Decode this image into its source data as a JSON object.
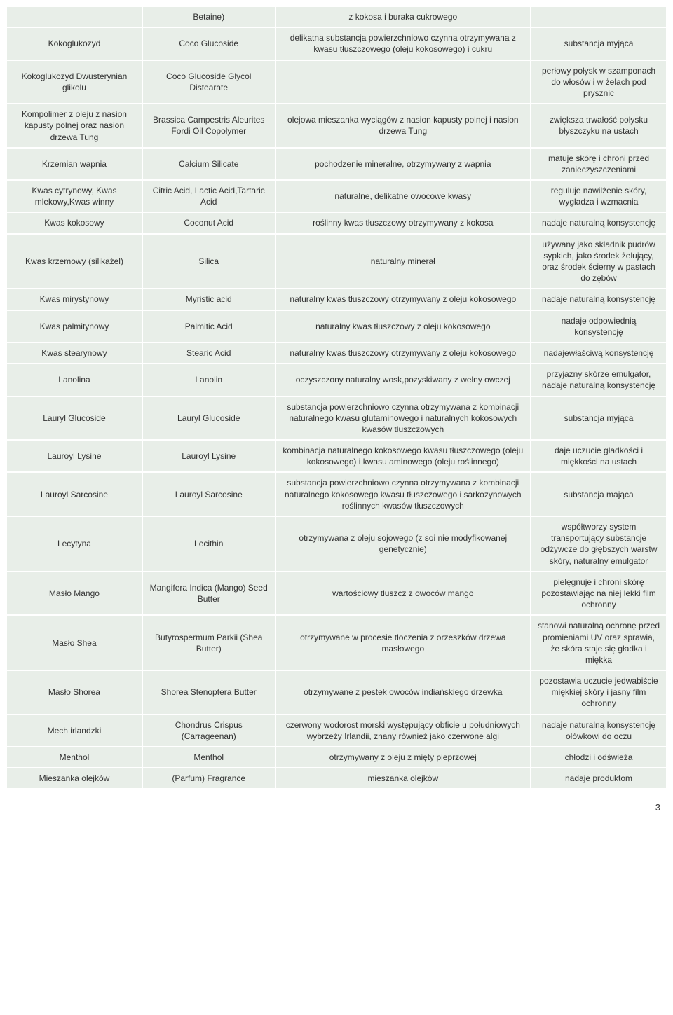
{
  "table": {
    "colors": {
      "cell_bg": "#e8eee8",
      "text": "#333333",
      "page_bg": "#ffffff"
    },
    "fontsize": 12,
    "rows": [
      {
        "c1": "",
        "c2": "Betaine)",
        "c3": "z kokosa i buraka cukrowego",
        "c4": ""
      },
      {
        "c1": "Kokoglukozyd",
        "c2": "Coco Glucoside",
        "c3": "delikatna substancja powierzchniowo czynna otrzymywana z kwasu tłuszczowego (oleju kokosowego) i cukru",
        "c4": "substancja myjąca"
      },
      {
        "c1": "Kokoglukozyd Dwusterynian glikolu",
        "c2": "Coco Glucoside Glycol Distearate",
        "c3": "",
        "c4": "perłowy połysk w szamponach do włosów i w żelach pod prysznic"
      },
      {
        "c1": "Kompolimer z oleju z nasion kapusty polnej oraz nasion drzewa Tung",
        "c2": "Brassica Campestris Aleurites Fordi Oil Copolymer",
        "c3": "olejowa mieszanka wyciągów z nasion kapusty polnej i nasion drzewa Tung",
        "c4": "zwiększa trwałość połysku błyszczyku na ustach"
      },
      {
        "c1": "Krzemian wapnia",
        "c2": "Calcium Silicate",
        "c3": "pochodzenie mineralne, otrzymywany z wapnia",
        "c4": "matuje skórę i chroni przed zanieczyszczeniami"
      },
      {
        "c1": "Kwas cytrynowy, Kwas mlekowy,Kwas winny",
        "c2": "Citric Acid, Lactic Acid,Tartaric Acid",
        "c3": "naturalne, delikatne owocowe kwasy",
        "c4": "reguluje nawilżenie skóry, wygładza i wzmacnia"
      },
      {
        "c1": "Kwas kokosowy",
        "c2": "Coconut Acid",
        "c3": "roślinny kwas tłuszczowy otrzymywany z kokosa",
        "c4": "nadaje naturalną konsystencję"
      },
      {
        "c1": "Kwas krzemowy (silikażel)",
        "c2": "Silica",
        "c3": "naturalny minerał",
        "c4": "używany jako składnik pudrów sypkich, jako środek żelujący, oraz środek ścierny w pastach do zębów"
      },
      {
        "c1": "Kwas mirystynowy",
        "c2": "Myristic acid",
        "c3": "naturalny kwas tłuszczowy otrzymywany z oleju kokosowego",
        "c4": "nadaje naturalną konsystencję"
      },
      {
        "c1": "Kwas palmitynowy",
        "c2": "Palmitic Acid",
        "c3": "naturalny kwas tłuszczowy z oleju kokosowego",
        "c4": "nadaje odpowiednią konsystencję"
      },
      {
        "c1": "Kwas stearynowy",
        "c2": "Stearic Acid",
        "c3": "naturalny kwas tłuszczowy otrzymywany z oleju kokosowego",
        "c4": "nadajewłaściwą konsystencję"
      },
      {
        "c1": "Lanolina",
        "c2": "Lanolin",
        "c3": "oczyszczony naturalny wosk,pozyskiwany z wełny owczej",
        "c4": "przyjazny skórze emulgator, nadaje naturalną konsystencję"
      },
      {
        "c1": "Lauryl Glucoside",
        "c2": "Lauryl Glucoside",
        "c3": "substancja powierzchniowo czynna otrzymywana z kombinacji naturalnego kwasu glutaminowego i naturalnych kokosowych kwasów tłuszczowych",
        "c4": "substancja myjąca"
      },
      {
        "c1": "Lauroyl Lysine",
        "c2": "Lauroyl Lysine",
        "c3": "kombinacja naturalnego kokosowego kwasu tłuszczowego (oleju kokosowego) i kwasu aminowego (oleju roślinnego)",
        "c4": "daje uczucie gładkości i miękkości na ustach"
      },
      {
        "c1": "Lauroyl Sarcosine",
        "c2": "Lauroyl Sarcosine",
        "c3": "substancja powierzchniowo czynna otrzymywana z kombinacji naturalnego kokosowego kwasu tłuszczowego i sarkozynowych roślinnych kwasów tłuszczowych",
        "c4": "substancja mająca"
      },
      {
        "c1": "Lecytyna",
        "c2": "Lecithin",
        "c3": "otrzymywana z oleju sojowego (z soi nie modyfikowanej genetycznie)",
        "c4": "współtworzy system transportujący substancje odżywcze do głębszych warstw skóry, naturalny emulgator"
      },
      {
        "c1": "Masło Mango",
        "c2": "Mangifera Indica (Mango) Seed Butter",
        "c3": "wartościowy tłuszcz z owoców mango",
        "c4": "pielęgnuje i chroni skórę pozostawiając na niej lekki film ochronny"
      },
      {
        "c1": "Masło Shea",
        "c2": "Butyrospermum Parkii (Shea Butter)",
        "c3": "otrzymywane w procesie tłoczenia z orzeszków drzewa masłowego",
        "c4": "stanowi naturalną ochronę przed promieniami UV oraz sprawia, że skóra staje się gładka i miękka"
      },
      {
        "c1": "Masło Shorea",
        "c2": "Shorea Stenoptera Butter",
        "c3": "otrzymywane z pestek owoców indiańskiego drzewka",
        "c4": "pozostawia uczucie jedwabiście miękkiej skóry i jasny film ochronny"
      },
      {
        "c1": "Mech irlandzki",
        "c2": "Chondrus Crispus (Carrageenan)",
        "c3": "czerwony wodorost morski występujący obficie u południowych wybrzeży Irlandii, znany również jako czerwone algi",
        "c4": "nadaje naturalną konsystencję ołówkowi do oczu"
      },
      {
        "c1": "Menthol",
        "c2": "Menthol",
        "c3": "otrzymywany z oleju z mięty pieprzowej",
        "c4": "chłodzi i odświeża"
      },
      {
        "c1": "Mieszanka olejków",
        "c2": "(Parfum) Fragrance",
        "c3": "mieszanka olejków",
        "c4": "nadaje produktom"
      }
    ]
  },
  "page_number": "3"
}
